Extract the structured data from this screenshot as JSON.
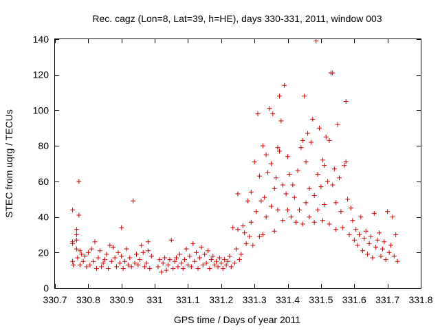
{
  "chart_data": {
    "type": "scatter",
    "title": "Rec. cagz (Lon=8, Lat=39, h=HE), days 330-331, 2011, window 003",
    "xlabel": "GPS time / Days of year 2011",
    "ylabel": "STEC from uqrg / TECUs",
    "xlim": [
      330.7,
      331.8
    ],
    "ylim": [
      0,
      140
    ],
    "xticks": [
      330.7,
      330.8,
      330.9,
      331,
      331.1,
      331.2,
      331.3,
      331.4,
      331.5,
      331.6,
      331.7,
      331.8
    ],
    "xtick_labels": [
      "330.7",
      "330.8",
      "330.9",
      "331",
      "331.1",
      "331.2",
      "331.3",
      "331.4",
      "331.5",
      "331.6",
      "331.7",
      "331.8"
    ],
    "yticks": [
      0,
      20,
      40,
      60,
      80,
      100,
      120,
      140
    ],
    "ytick_labels": [
      "0",
      "20",
      "40",
      "60",
      "80",
      "100",
      "120",
      "140"
    ],
    "grid": false,
    "marker": "+",
    "color": "#cc0000",
    "series": [
      {
        "points": [
          [
            330.753,
            44
          ],
          [
            330.753,
            26
          ],
          [
            330.753,
            25
          ],
          [
            330.753,
            15
          ],
          [
            330.755,
            13
          ],
          [
            330.765,
            33
          ],
          [
            330.765,
            30
          ],
          [
            330.765,
            27
          ],
          [
            330.765,
            22
          ],
          [
            330.768,
            17
          ],
          [
            330.772,
            60
          ],
          [
            330.772,
            41
          ],
          [
            330.775,
            21
          ],
          [
            330.775,
            13
          ],
          [
            330.78,
            19
          ],
          [
            330.785,
            15
          ],
          [
            330.79,
            18
          ],
          [
            330.795,
            12
          ],
          [
            330.8,
            20
          ],
          [
            330.805,
            13
          ],
          [
            330.81,
            22
          ],
          [
            330.815,
            15
          ],
          [
            330.82,
            26
          ],
          [
            330.825,
            11
          ],
          [
            330.83,
            17
          ],
          [
            330.835,
            21
          ],
          [
            330.84,
            12
          ],
          [
            330.845,
            14
          ],
          [
            330.85,
            16
          ],
          [
            330.855,
            19
          ],
          [
            330.86,
            11
          ],
          [
            330.865,
            24
          ],
          [
            330.87,
            15
          ],
          [
            330.875,
            23
          ],
          [
            330.88,
            17
          ],
          [
            330.885,
            12
          ],
          [
            330.89,
            20
          ],
          [
            330.895,
            14
          ],
          [
            330.9,
            34
          ],
          [
            330.9,
            18
          ],
          [
            330.905,
            11
          ],
          [
            330.91,
            15
          ],
          [
            330.915,
            22
          ],
          [
            330.92,
            13
          ],
          [
            330.925,
            17
          ],
          [
            330.93,
            12
          ],
          [
            330.935,
            49
          ],
          [
            330.94,
            14
          ],
          [
            330.945,
            19
          ],
          [
            330.95,
            13
          ],
          [
            330.955,
            16
          ],
          [
            330.96,
            24
          ],
          [
            330.965,
            20
          ],
          [
            330.97,
            12
          ],
          [
            330.975,
            14
          ],
          [
            330.98,
            26
          ],
          [
            330.98,
            21
          ],
          [
            330.985,
            11
          ],
          [
            330.99,
            18
          ],
          [
            331.01,
            12
          ],
          [
            331.015,
            16
          ],
          [
            331.02,
            9
          ],
          [
            331.025,
            14
          ],
          [
            331.03,
            17
          ],
          [
            331.035,
            10
          ],
          [
            331.04,
            13
          ],
          [
            331.045,
            16
          ],
          [
            331.05,
            27
          ],
          [
            331.055,
            11
          ],
          [
            331.06,
            15
          ],
          [
            331.065,
            17
          ],
          [
            331.07,
            12
          ],
          [
            331.075,
            19
          ],
          [
            331.08,
            14
          ],
          [
            331.085,
            11
          ],
          [
            331.09,
            16
          ],
          [
            331.095,
            22
          ],
          [
            331.1,
            13
          ],
          [
            331.105,
            18
          ],
          [
            331.11,
            12
          ],
          [
            331.115,
            25
          ],
          [
            331.12,
            15
          ],
          [
            331.125,
            20
          ],
          [
            331.13,
            11
          ],
          [
            331.135,
            17
          ],
          [
            331.14,
            23
          ],
          [
            331.145,
            13
          ],
          [
            331.15,
            19
          ],
          [
            331.155,
            14
          ],
          [
            331.16,
            21
          ],
          [
            331.165,
            11
          ],
          [
            331.17,
            16
          ],
          [
            331.175,
            18
          ],
          [
            331.18,
            13
          ],
          [
            331.185,
            15
          ],
          [
            331.19,
            12
          ],
          [
            331.195,
            17
          ],
          [
            331.2,
            14
          ],
          [
            331.205,
            11
          ],
          [
            331.21,
            16
          ],
          [
            331.215,
            13
          ],
          [
            331.22,
            15
          ],
          [
            331.225,
            18
          ],
          [
            331.23,
            12
          ],
          [
            331.235,
            34
          ],
          [
            331.24,
            14
          ],
          [
            331.245,
            22
          ],
          [
            331.25,
            53
          ],
          [
            331.25,
            33
          ],
          [
            331.255,
            16
          ],
          [
            331.26,
            19
          ],
          [
            331.265,
            35
          ],
          [
            331.27,
            31
          ],
          [
            331.275,
            25
          ],
          [
            331.28,
            49
          ],
          [
            331.285,
            29
          ],
          [
            331.29,
            37
          ],
          [
            331.29,
            54
          ],
          [
            331.295,
            24
          ],
          [
            331.3,
            71
          ],
          [
            331.305,
            43
          ],
          [
            331.31,
            98
          ],
          [
            331.315,
            29
          ],
          [
            331.315,
            63
          ],
          [
            331.32,
            49
          ],
          [
            331.325,
            80
          ],
          [
            331.325,
            30
          ],
          [
            331.33,
            51
          ],
          [
            331.335,
            75
          ],
          [
            331.335,
            40
          ],
          [
            331.34,
            65
          ],
          [
            331.345,
            101
          ],
          [
            331.35,
            70
          ],
          [
            331.35,
            46
          ],
          [
            331.355,
            98
          ],
          [
            331.36,
            32
          ],
          [
            331.36,
            56
          ],
          [
            331.365,
            62
          ],
          [
            331.37,
            44
          ],
          [
            331.37,
            79
          ],
          [
            331.375,
            108
          ],
          [
            331.375,
            77
          ],
          [
            331.38,
            94
          ],
          [
            331.385,
            58
          ],
          [
            331.385,
            38
          ],
          [
            331.39,
            114
          ],
          [
            331.395,
            53
          ],
          [
            331.4,
            74
          ],
          [
            331.4,
            44
          ],
          [
            331.405,
            64
          ],
          [
            331.41,
            40
          ],
          [
            331.415,
            58
          ],
          [
            331.42,
            51
          ],
          [
            331.425,
            37
          ],
          [
            331.43,
            66
          ],
          [
            331.435,
            44
          ],
          [
            331.44,
            79
          ],
          [
            331.445,
            83
          ],
          [
            331.445,
            36
          ],
          [
            331.45,
            108
          ],
          [
            331.455,
            71
          ],
          [
            331.455,
            48
          ],
          [
            331.46,
            87
          ],
          [
            331.465,
            56
          ],
          [
            331.465,
            40
          ],
          [
            331.47,
            82
          ],
          [
            331.475,
            95
          ],
          [
            331.48,
            52
          ],
          [
            331.48,
            37
          ],
          [
            331.485,
            139
          ],
          [
            331.49,
            64
          ],
          [
            331.49,
            44
          ],
          [
            331.495,
            90
          ],
          [
            331.5,
            57
          ],
          [
            331.505,
            72
          ],
          [
            331.505,
            38
          ],
          [
            331.51,
            69
          ],
          [
            331.51,
            47
          ],
          [
            331.515,
            85
          ],
          [
            331.52,
            60
          ],
          [
            331.525,
            36
          ],
          [
            331.525,
            83
          ],
          [
            331.53,
            121
          ],
          [
            331.535,
            121
          ],
          [
            331.535,
            58
          ],
          [
            331.54,
            67
          ],
          [
            331.545,
            48
          ],
          [
            331.545,
            33
          ],
          [
            331.55,
            92
          ],
          [
            331.555,
            62
          ],
          [
            331.56,
            43
          ],
          [
            331.565,
            34
          ],
          [
            331.57,
            69
          ],
          [
            331.575,
            71
          ],
          [
            331.575,
            105
          ],
          [
            331.58,
            50
          ],
          [
            331.585,
            30
          ],
          [
            331.59,
            45
          ],
          [
            331.595,
            38
          ],
          [
            331.6,
            27
          ],
          [
            331.605,
            33
          ],
          [
            331.61,
            24
          ],
          [
            331.615,
            30
          ],
          [
            331.62,
            40
          ],
          [
            331.625,
            21
          ],
          [
            331.63,
            28
          ],
          [
            331.635,
            32
          ],
          [
            331.64,
            19
          ],
          [
            331.645,
            25
          ],
          [
            331.65,
            29
          ],
          [
            331.655,
            17
          ],
          [
            331.66,
            42
          ],
          [
            331.665,
            23
          ],
          [
            331.67,
            27
          ],
          [
            331.675,
            31
          ],
          [
            331.68,
            18
          ],
          [
            331.685,
            22
          ],
          [
            331.69,
            26
          ],
          [
            331.695,
            16
          ],
          [
            331.7,
            43
          ],
          [
            331.705,
            20
          ],
          [
            331.71,
            24
          ],
          [
            331.715,
            40
          ],
          [
            331.72,
            18
          ],
          [
            331.725,
            30
          ],
          [
            331.73,
            15
          ]
        ]
      }
    ]
  }
}
